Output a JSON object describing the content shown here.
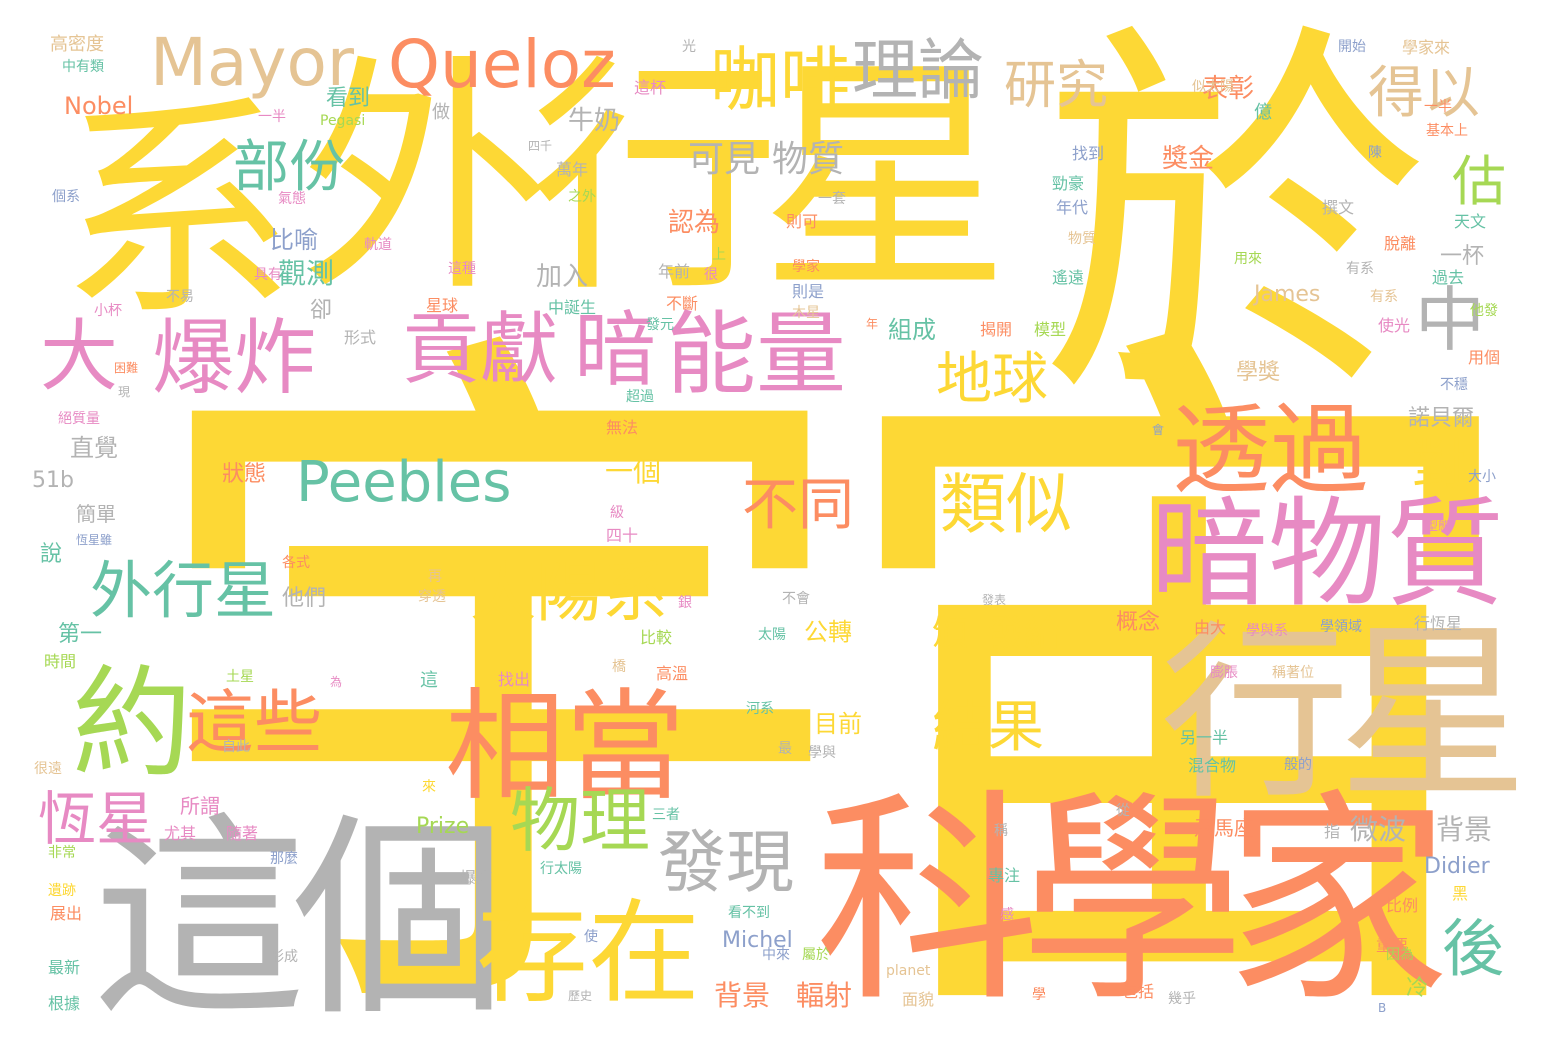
{
  "palette": {
    "yellow": "#fdd835",
    "orange": "#fc8d62",
    "gray": "#b3b3b3",
    "tan": "#e5c494",
    "pink": "#e78ac3",
    "green": "#66c2a5",
    "lime": "#a6d854",
    "blue": "#8da0cb"
  },
  "words": [
    {
      "text": "宇宙",
      "color": "yellow"
    },
    {
      "text": "系",
      "color": "yellow"
    },
    {
      "text": "外行星",
      "color": "yellow"
    },
    {
      "text": "於",
      "color": "yellow"
    },
    {
      "text": "這個",
      "color": "gray"
    },
    {
      "text": "科學家",
      "color": "orange"
    },
    {
      "text": "行星",
      "color": "tan"
    },
    {
      "text": "暗物質",
      "color": "pink"
    },
    {
      "text": "相當",
      "color": "orange"
    },
    {
      "text": "存在",
      "color": "yellow"
    },
    {
      "text": "約",
      "color": "lime"
    },
    {
      "text": "透過",
      "color": "orange"
    },
    {
      "text": "貢獻",
      "color": "pink"
    },
    {
      "text": "暗",
      "color": "pink"
    },
    {
      "text": "能量",
      "color": "pink"
    },
    {
      "text": "爆炸",
      "color": "pink"
    },
    {
      "text": "大",
      "color": "pink"
    },
    {
      "text": "Mayor",
      "color": "tan"
    },
    {
      "text": "Queloz",
      "color": "orange"
    },
    {
      "text": "咖啡",
      "color": "yellow"
    },
    {
      "text": "理論",
      "color": "gray"
    },
    {
      "text": "研究",
      "color": "tan"
    },
    {
      "text": "得以",
      "color": "tan"
    },
    {
      "text": "中",
      "color": "gray"
    },
    {
      "text": "部份",
      "color": "green"
    },
    {
      "text": "可見",
      "color": "gray"
    },
    {
      "text": "物質",
      "color": "gray"
    },
    {
      "text": "地球",
      "color": "yellow"
    },
    {
      "text": "估",
      "color": "lime"
    },
    {
      "text": "Peebles",
      "color": "green"
    },
    {
      "text": "外行星",
      "color": "green"
    },
    {
      "text": "太陽系",
      "color": "yellow"
    },
    {
      "text": "不同",
      "color": "orange"
    },
    {
      "text": "類似",
      "color": "yellow"
    },
    {
      "text": "對",
      "color": "yellow"
    },
    {
      "text": "這些",
      "color": "orange"
    },
    {
      "text": "物理",
      "color": "lime"
    },
    {
      "text": "發現",
      "color": "gray"
    },
    {
      "text": "恆星",
      "color": "pink"
    },
    {
      "text": "後",
      "color": "green"
    },
    {
      "text": "頒",
      "color": "yellow"
    },
    {
      "text": "發給",
      "color": "yellow"
    },
    {
      "text": "結果",
      "color": "yellow"
    },
    {
      "text": "背景",
      "color": "orange"
    },
    {
      "text": "輻射",
      "color": "orange"
    },
    {
      "text": "微波",
      "color": "gray"
    },
    {
      "text": "背景",
      "color": "gray"
    },
    {
      "text": "觀測",
      "color": "green"
    },
    {
      "text": "比喻",
      "color": "blue"
    },
    {
      "text": "直覺",
      "color": "gray"
    },
    {
      "text": "加入",
      "color": "gray"
    },
    {
      "text": "牛奶",
      "color": "gray"
    },
    {
      "text": "看到",
      "color": "green"
    },
    {
      "text": "表彰",
      "color": "orange"
    },
    {
      "text": "獎金",
      "color": "orange"
    },
    {
      "text": "認為",
      "color": "orange"
    },
    {
      "text": "狀態",
      "color": "orange"
    },
    {
      "text": "一個",
      "color": "yellow"
    },
    {
      "text": "Nobel",
      "color": "orange"
    },
    {
      "text": "James",
      "color": "tan"
    },
    {
      "text": "Prize",
      "color": "lime"
    },
    {
      "text": "Michel",
      "color": "blue"
    },
    {
      "text": "Didier",
      "color": "blue"
    },
    {
      "text": "51b",
      "color": "gray"
    },
    {
      "text": "諾貝爾",
      "color": "gray"
    },
    {
      "text": "一杯",
      "color": "gray"
    },
    {
      "text": "組成",
      "color": "green"
    },
    {
      "text": "學獎",
      "color": "tan"
    },
    {
      "text": "目前",
      "color": "yellow"
    },
    {
      "text": "公轉",
      "color": "yellow"
    },
    {
      "text": "概念",
      "color": "orange"
    },
    {
      "text": "飛馬座",
      "color": "orange"
    },
    {
      "text": "冷",
      "color": "lime"
    },
    {
      "text": "所謂",
      "color": "pink"
    },
    {
      "text": "簡單",
      "color": "gray"
    },
    {
      "text": "第一",
      "color": "green"
    },
    {
      "text": "他們",
      "color": "gray"
    },
    {
      "text": "卻",
      "color": "gray"
    },
    {
      "text": "說",
      "color": "green"
    },
    {
      "text": "高密度",
      "color": "tan"
    },
    {
      "text": "光",
      "color": "gray"
    },
    {
      "text": "中有類",
      "color": "green"
    },
    {
      "text": "做",
      "color": "gray"
    },
    {
      "text": "這杯",
      "color": "pink"
    },
    {
      "text": "一半",
      "color": "pink"
    },
    {
      "text": "Pegasi",
      "color": "lime"
    },
    {
      "text": "開始",
      "color": "blue"
    },
    {
      "text": "學家來",
      "color": "tan"
    },
    {
      "text": "似太陽",
      "color": "tan"
    },
    {
      "text": "億",
      "color": "green"
    },
    {
      "text": "基本上",
      "color": "orange"
    },
    {
      "text": "陳",
      "color": "blue"
    },
    {
      "text": "撰文",
      "color": "gray"
    },
    {
      "text": "天文",
      "color": "green"
    },
    {
      "text": "脫離",
      "color": "orange"
    },
    {
      "text": "過去",
      "color": "green"
    },
    {
      "text": "用來",
      "color": "lime"
    },
    {
      "text": "有系",
      "color": "tan"
    },
    {
      "text": "他發",
      "color": "lime"
    },
    {
      "text": "使光",
      "color": "pink"
    },
    {
      "text": "用個",
      "color": "orange"
    },
    {
      "text": "不穩",
      "color": "blue"
    },
    {
      "text": "大小",
      "color": "blue"
    },
    {
      "text": "型態",
      "color": "pink"
    },
    {
      "text": "行恆星",
      "color": "gray"
    },
    {
      "text": "學領域",
      "color": "blue"
    },
    {
      "text": "學與系",
      "color": "pink"
    },
    {
      "text": "由大",
      "color": "orange"
    },
    {
      "text": "膨脹",
      "color": "pink"
    },
    {
      "text": "稱著位",
      "color": "tan"
    },
    {
      "text": "另一半",
      "color": "green"
    },
    {
      "text": "混合物",
      "color": "green"
    },
    {
      "text": "般的",
      "color": "blue"
    },
    {
      "text": "從",
      "color": "gray"
    },
    {
      "text": "指",
      "color": "gray"
    },
    {
      "text": "比例",
      "color": "orange"
    },
    {
      "text": "黑",
      "color": "yellow"
    },
    {
      "text": "重要",
      "color": "orange"
    },
    {
      "text": "因為",
      "color": "lime"
    },
    {
      "text": "包括",
      "color": "orange"
    },
    {
      "text": "幾乎",
      "color": "gray"
    },
    {
      "text": "學",
      "color": "orange"
    },
    {
      "text": "B",
      "color": "blue"
    },
    {
      "text": "面貌",
      "color": "tan"
    },
    {
      "text": "planet",
      "color": "tan"
    },
    {
      "text": "專注",
      "color": "green"
    },
    {
      "text": "感",
      "color": "pink"
    },
    {
      "text": "稱",
      "color": "gray"
    },
    {
      "text": "屬於",
      "color": "lime"
    },
    {
      "text": "中來",
      "color": "blue"
    },
    {
      "text": "看不到",
      "color": "green"
    },
    {
      "text": "使",
      "color": "blue"
    },
    {
      "text": "歷史",
      "color": "gray"
    },
    {
      "text": "穿透",
      "color": "tan"
    },
    {
      "text": "再",
      "color": "tan"
    },
    {
      "text": "級",
      "color": "pink"
    },
    {
      "text": "四十",
      "color": "pink"
    },
    {
      "text": "無法",
      "color": "orange"
    },
    {
      "text": "超過",
      "color": "green"
    },
    {
      "text": "發元",
      "color": "green"
    },
    {
      "text": "不斷",
      "color": "orange"
    },
    {
      "text": "年前",
      "color": "gray"
    },
    {
      "text": "很",
      "color": "pink"
    },
    {
      "text": "上",
      "color": "lime"
    },
    {
      "text": "中誕生",
      "color": "green"
    },
    {
      "text": "星球",
      "color": "orange"
    },
    {
      "text": "這種",
      "color": "pink"
    },
    {
      "text": "軌道",
      "color": "pink"
    },
    {
      "text": "具有",
      "color": "pink"
    },
    {
      "text": "氣態",
      "color": "pink"
    },
    {
      "text": "個系",
      "color": "blue"
    },
    {
      "text": "小杯",
      "color": "pink"
    },
    {
      "text": "不易",
      "color": "gray"
    },
    {
      "text": "困難",
      "color": "orange"
    },
    {
      "text": "現",
      "color": "gray"
    },
    {
      "text": "絕質量",
      "color": "pink"
    },
    {
      "text": "形式",
      "color": "gray"
    },
    {
      "text": "萬年",
      "color": "gray"
    },
    {
      "text": "之外",
      "color": "lime"
    },
    {
      "text": "四千",
      "color": "gray"
    },
    {
      "text": "一套",
      "color": "gray"
    },
    {
      "text": "則可",
      "color": "orange"
    },
    {
      "text": "找到",
      "color": "blue"
    },
    {
      "text": "勁豪",
      "color": "green"
    },
    {
      "text": "年代",
      "color": "blue"
    },
    {
      "text": "物質",
      "color": "tan"
    },
    {
      "text": "學家",
      "color": "orange"
    },
    {
      "text": "則是",
      "color": "blue"
    },
    {
      "text": "木星",
      "color": "tan"
    },
    {
      "text": "年",
      "color": "orange"
    },
    {
      "text": "揭開",
      "color": "orange"
    },
    {
      "text": "模型",
      "color": "lime"
    },
    {
      "text": "遙遠",
      "color": "green"
    },
    {
      "text": "一半",
      "color": "orange"
    },
    {
      "text": "有系",
      "color": "gray"
    },
    {
      "text": "不會",
      "color": "gray"
    },
    {
      "text": "太陽",
      "color": "green"
    },
    {
      "text": "河系",
      "color": "green"
    },
    {
      "text": "最",
      "color": "gray"
    },
    {
      "text": "學與",
      "color": "gray"
    },
    {
      "text": "找出",
      "color": "pink"
    },
    {
      "text": "這",
      "color": "green"
    },
    {
      "text": "為",
      "color": "pink"
    },
    {
      "text": "橋",
      "color": "tan"
    },
    {
      "text": "比較",
      "color": "lime"
    },
    {
      "text": "高溫",
      "color": "orange"
    },
    {
      "text": "三者",
      "color": "green"
    },
    {
      "text": "來",
      "color": "yellow"
    },
    {
      "text": "爆炸",
      "color": "gray"
    },
    {
      "text": "行太陽",
      "color": "green"
    },
    {
      "text": "那麼",
      "color": "blue"
    },
    {
      "text": "尤其",
      "color": "pink"
    },
    {
      "text": "隨著",
      "color": "pink"
    },
    {
      "text": "自此",
      "color": "gray"
    },
    {
      "text": "很遠",
      "color": "tan"
    },
    {
      "text": "土星",
      "color": "lime"
    },
    {
      "text": "時間",
      "color": "lime"
    },
    {
      "text": "各式",
      "color": "orange"
    },
    {
      "text": "恆星雖",
      "color": "blue"
    },
    {
      "text": "非常",
      "color": "lime"
    },
    {
      "text": "遺跡",
      "color": "yellow"
    },
    {
      "text": "展出",
      "color": "orange"
    },
    {
      "text": "最新",
      "color": "green"
    },
    {
      "text": "根據",
      "color": "green"
    },
    {
      "text": "形成",
      "color": "gray"
    },
    {
      "text": "銀",
      "color": "pink"
    },
    {
      "text": "發表",
      "color": "gray"
    },
    {
      "text": "會",
      "color": "blue"
    }
  ]
}
